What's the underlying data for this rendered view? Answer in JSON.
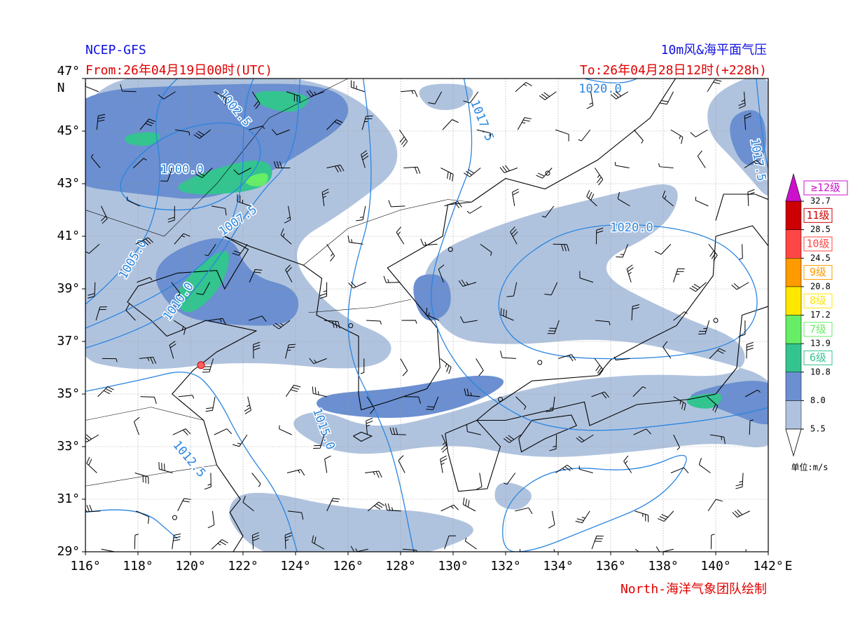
{
  "header": {
    "left_title": "NCEP-GFS",
    "from": "From:26年04月19日00时(UTC)",
    "right_title": "10m风&海平面气压",
    "to": "To:26年04月28日12时(+228h)"
  },
  "map": {
    "lon_ticks": [
      {
        "value": 116,
        "label": "116°"
      },
      {
        "value": 118,
        "label": "118°"
      },
      {
        "value": 120,
        "label": "120°"
      },
      {
        "value": 122,
        "label": "122°"
      },
      {
        "value": 124,
        "label": "124°"
      },
      {
        "value": 126,
        "label": "126°"
      },
      {
        "value": 128,
        "label": "128°"
      },
      {
        "value": 130,
        "label": "130°"
      },
      {
        "value": 132,
        "label": "132°"
      },
      {
        "value": 134,
        "label": "134°"
      },
      {
        "value": 136,
        "label": "136°"
      },
      {
        "value": 138,
        "label": "138°"
      },
      {
        "value": 140,
        "label": "140°"
      },
      {
        "value": 142,
        "label": "142°"
      }
    ],
    "lat_ticks": [
      {
        "value": 29,
        "label": "29°"
      },
      {
        "value": 31,
        "label": "31°"
      },
      {
        "value": 33,
        "label": "33°"
      },
      {
        "value": 35,
        "label": "35°"
      },
      {
        "value": 37,
        "label": "37°"
      },
      {
        "value": 39,
        "label": "39°"
      },
      {
        "value": 41,
        "label": "41°"
      },
      {
        "value": 43,
        "label": "43°"
      },
      {
        "value": 45,
        "label": "45°"
      },
      {
        "value": 47,
        "label": "47°"
      }
    ],
    "lat_unit": "N",
    "lon_unit": "E",
    "contour_labels": [
      "1000.0",
      "1002.5",
      "1005.0",
      "1007.5",
      "1010.0",
      "1012.5",
      "1015.0",
      "1017.5",
      "1017.5",
      "1020.0",
      "1020.0"
    ]
  },
  "legend": {
    "bounds": [
      5.5,
      {
        "value": 8,
        "label": "8.0"
      },
      10.8,
      13.9,
      17.2,
      20.8,
      24.5,
      28.5,
      32.7
    ],
    "colors": [
      "#b0c3de",
      "#6b8fd0",
      "#33c48f",
      "#66ee66",
      "#ffe800",
      "#ff9a00",
      "#ff4646",
      "#cc0000"
    ],
    "classes": [
      "6级",
      "7级",
      "8级",
      "9级",
      "10级",
      "11级"
    ],
    "top_class": "≥12级",
    "top_color": "#cc11cc",
    "unit": "单位:m/s"
  },
  "footer": "North-海洋气象团队绘制"
}
